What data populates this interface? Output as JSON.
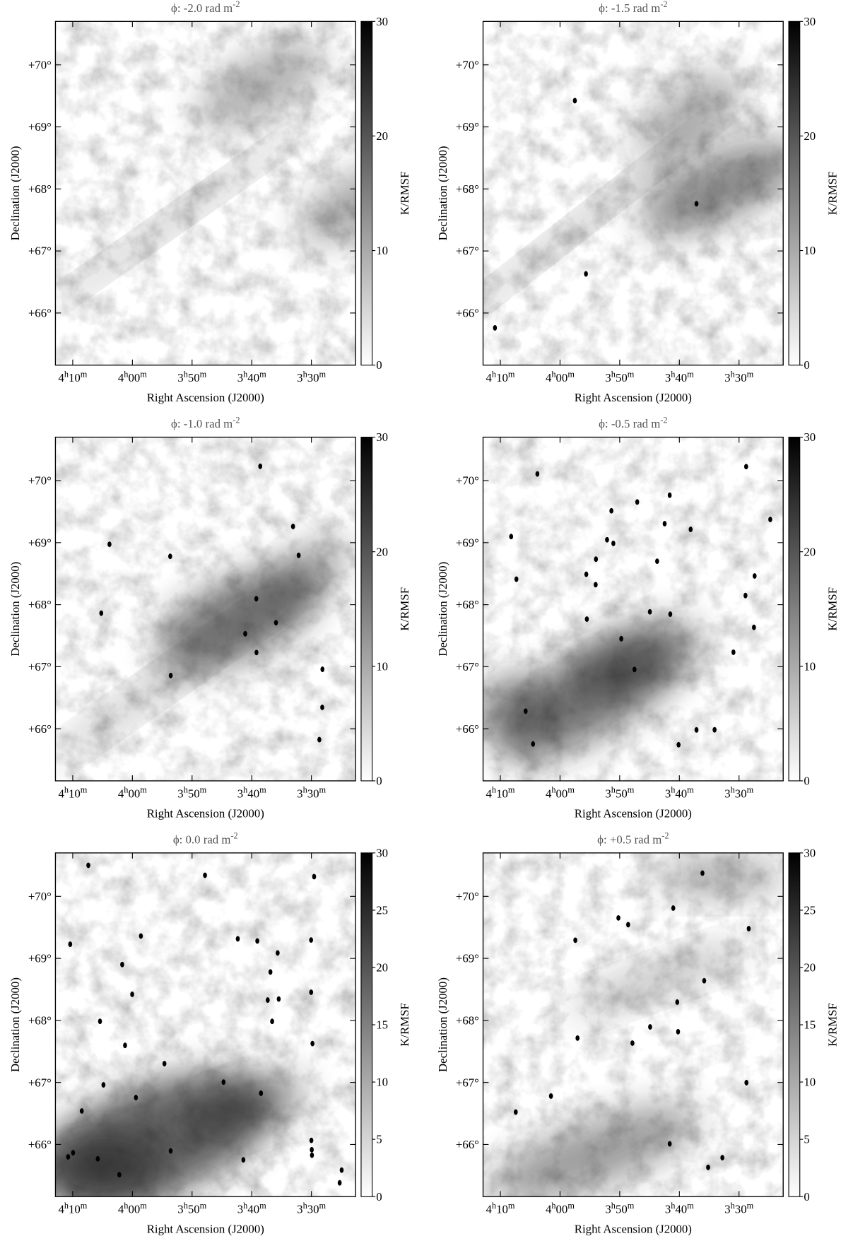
{
  "chart_data": [
    {
      "type": "image",
      "title": "ϕ: -2.0 rad m",
      "title_sup": "-2",
      "x_label": "Right Ascension (J2000)",
      "y_label": "Declination (J2000)",
      "colorbar_label": "K/RMSF",
      "xlim": [
        252.9,
        202.6
      ],
      "xticks": [
        {
          "value": 250,
          "label": "4h10m"
        },
        {
          "value": 240,
          "label": "4h00m"
        },
        {
          "value": 230,
          "label": "3h50m"
        },
        {
          "value": 220,
          "label": "3h40m"
        },
        {
          "value": 210,
          "label": "3h30m"
        }
      ],
      "ylim": [
        65.16,
        70.7
      ],
      "yticks": [
        {
          "value": 66,
          "label": "+66°"
        },
        {
          "value": 67,
          "label": "+67°"
        },
        {
          "value": 68,
          "label": "+68°"
        },
        {
          "value": 69,
          "label": "+69°"
        },
        {
          "value": 70,
          "label": "+70°"
        }
      ],
      "clim": [
        0,
        30
      ],
      "cticks": [
        0,
        10,
        20,
        30
      ]
    },
    {
      "type": "image",
      "title": "ϕ: -1.5 rad m",
      "title_sup": "-2",
      "x_label": "Right Ascension (J2000)",
      "y_label": "Declination (J2000)",
      "colorbar_label": "K/RMSF",
      "xlim": [
        252.9,
        202.6
      ],
      "xticks": [
        {
          "value": 250,
          "label": "4h10m"
        },
        {
          "value": 240,
          "label": "4h00m"
        },
        {
          "value": 230,
          "label": "3h50m"
        },
        {
          "value": 220,
          "label": "3h40m"
        },
        {
          "value": 210,
          "label": "3h30m"
        }
      ],
      "ylim": [
        65.16,
        70.7
      ],
      "yticks": [
        {
          "value": 66,
          "label": "+66°"
        },
        {
          "value": 67,
          "label": "+67°"
        },
        {
          "value": 68,
          "label": "+68°"
        },
        {
          "value": 69,
          "label": "+69°"
        },
        {
          "value": 70,
          "label": "+70°"
        }
      ],
      "clim": [
        0,
        30
      ],
      "cticks": [
        0,
        10,
        20,
        30
      ]
    },
    {
      "type": "image",
      "title": "ϕ: -1.0 rad m",
      "title_sup": "-2",
      "x_label": "Right Ascension (J2000)",
      "y_label": "Declination (J2000)",
      "colorbar_label": "K/RMSF",
      "xlim": [
        252.9,
        202.6
      ],
      "xticks": [
        {
          "value": 250,
          "label": "4h10m"
        },
        {
          "value": 240,
          "label": "4h00m"
        },
        {
          "value": 230,
          "label": "3h50m"
        },
        {
          "value": 220,
          "label": "3h40m"
        },
        {
          "value": 210,
          "label": "3h30m"
        }
      ],
      "ylim": [
        65.16,
        70.7
      ],
      "yticks": [
        {
          "value": 66,
          "label": "+66°"
        },
        {
          "value": 67,
          "label": "+67°"
        },
        {
          "value": 68,
          "label": "+68°"
        },
        {
          "value": 69,
          "label": "+69°"
        },
        {
          "value": 70,
          "label": "+70°"
        }
      ],
      "clim": [
        0,
        30
      ],
      "cticks": [
        0,
        10,
        20,
        30
      ]
    },
    {
      "type": "image",
      "title": "ϕ: -0.5 rad m",
      "title_sup": "-2",
      "x_label": "Right Ascension (J2000)",
      "y_label": "Declination (J2000)",
      "colorbar_label": "K/RMSF",
      "xlim": [
        252.9,
        202.6
      ],
      "xticks": [
        {
          "value": 250,
          "label": "4h10m"
        },
        {
          "value": 240,
          "label": "4h00m"
        },
        {
          "value": 230,
          "label": "3h50m"
        },
        {
          "value": 220,
          "label": "3h40m"
        },
        {
          "value": 210,
          "label": "3h30m"
        }
      ],
      "ylim": [
        65.16,
        70.7
      ],
      "yticks": [
        {
          "value": 66,
          "label": "+66°"
        },
        {
          "value": 67,
          "label": "+67°"
        },
        {
          "value": 68,
          "label": "+68°"
        },
        {
          "value": 69,
          "label": "+69°"
        },
        {
          "value": 70,
          "label": "+70°"
        }
      ],
      "clim": [
        0,
        30
      ],
      "cticks": [
        0,
        10,
        20,
        30
      ]
    },
    {
      "type": "image",
      "title": "ϕ: 0.0 rad m",
      "title_sup": "-2",
      "x_label": "Right Ascension (J2000)",
      "y_label": "Declination (J2000)",
      "colorbar_label": "K/RMSF",
      "xlim": [
        252.9,
        202.6
      ],
      "xticks": [
        {
          "value": 250,
          "label": "4h10m"
        },
        {
          "value": 240,
          "label": "4h00m"
        },
        {
          "value": 230,
          "label": "3h50m"
        },
        {
          "value": 220,
          "label": "3h40m"
        },
        {
          "value": 210,
          "label": "3h30m"
        }
      ],
      "ylim": [
        65.16,
        70.7
      ],
      "yticks": [
        {
          "value": 66,
          "label": "+66°"
        },
        {
          "value": 67,
          "label": "+67°"
        },
        {
          "value": 68,
          "label": "+68°"
        },
        {
          "value": 69,
          "label": "+69°"
        },
        {
          "value": 70,
          "label": "+70°"
        }
      ],
      "clim": [
        0,
        30
      ],
      "cticks": [
        0,
        5,
        10,
        15,
        20,
        25,
        30
      ]
    },
    {
      "type": "image",
      "title": "ϕ: +0.5 rad m",
      "title_sup": "-2",
      "x_label": "Right Ascension (J2000)",
      "y_label": "Declination (J2000)",
      "colorbar_label": "K/RMSF",
      "xlim": [
        252.9,
        202.6
      ],
      "xticks": [
        {
          "value": 250,
          "label": "4h10m"
        },
        {
          "value": 240,
          "label": "4h00m"
        },
        {
          "value": 230,
          "label": "3h50m"
        },
        {
          "value": 220,
          "label": "3h40m"
        },
        {
          "value": 210,
          "label": "3h30m"
        }
      ],
      "ylim": [
        65.16,
        70.7
      ],
      "yticks": [
        {
          "value": 66,
          "label": "+66°"
        },
        {
          "value": 67,
          "label": "+67°"
        },
        {
          "value": 68,
          "label": "+68°"
        },
        {
          "value": 69,
          "label": "+69°"
        },
        {
          "value": 70,
          "label": "+70°"
        }
      ],
      "clim": [
        0,
        30
      ],
      "cticks": [
        0,
        5,
        10,
        15,
        20,
        25,
        30
      ]
    }
  ]
}
